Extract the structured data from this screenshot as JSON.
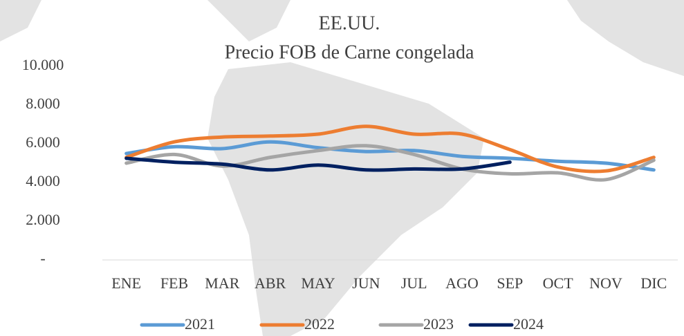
{
  "chart_data": {
    "type": "line",
    "title": "EE.UU.",
    "subtitle": "Precio FOB de Carne congelada",
    "categories": [
      "ENE",
      "FEB",
      "MAR",
      "ABR",
      "MAY",
      "JUN",
      "JUL",
      "AGO",
      "SEP",
      "OCT",
      "NOV",
      "DIC"
    ],
    "series": [
      {
        "name": "2021",
        "color": "#5b9bd5",
        "values": [
          5500,
          5850,
          5750,
          6100,
          5800,
          5600,
          5650,
          5350,
          5250,
          5100,
          5000,
          4650
        ]
      },
      {
        "name": "2022",
        "color": "#ed7d31",
        "values": [
          5300,
          6100,
          6350,
          6400,
          6500,
          6900,
          6500,
          6500,
          5700,
          4800,
          4600,
          5300
        ]
      },
      {
        "name": "2023",
        "color": "#a5a5a5",
        "values": [
          5000,
          5450,
          4850,
          5300,
          5650,
          5900,
          5450,
          4700,
          4450,
          4500,
          4150,
          5150
        ]
      },
      {
        "name": "2024",
        "color": "#002060",
        "values": [
          5250,
          5050,
          4950,
          4650,
          4900,
          4650,
          4700,
          4700,
          5050,
          null,
          null,
          null
        ]
      }
    ],
    "ylim": [
      0,
      10000
    ],
    "yticks": [
      {
        "value": 0,
        "label": "-"
      },
      {
        "value": 2000,
        "label": "2.000"
      },
      {
        "value": 4000,
        "label": "4.000"
      },
      {
        "value": 6000,
        "label": "6.000"
      },
      {
        "value": 8000,
        "label": "8.000"
      },
      {
        "value": 10000,
        "label": "10.000"
      }
    ],
    "grid": false,
    "legend": "bottom"
  }
}
